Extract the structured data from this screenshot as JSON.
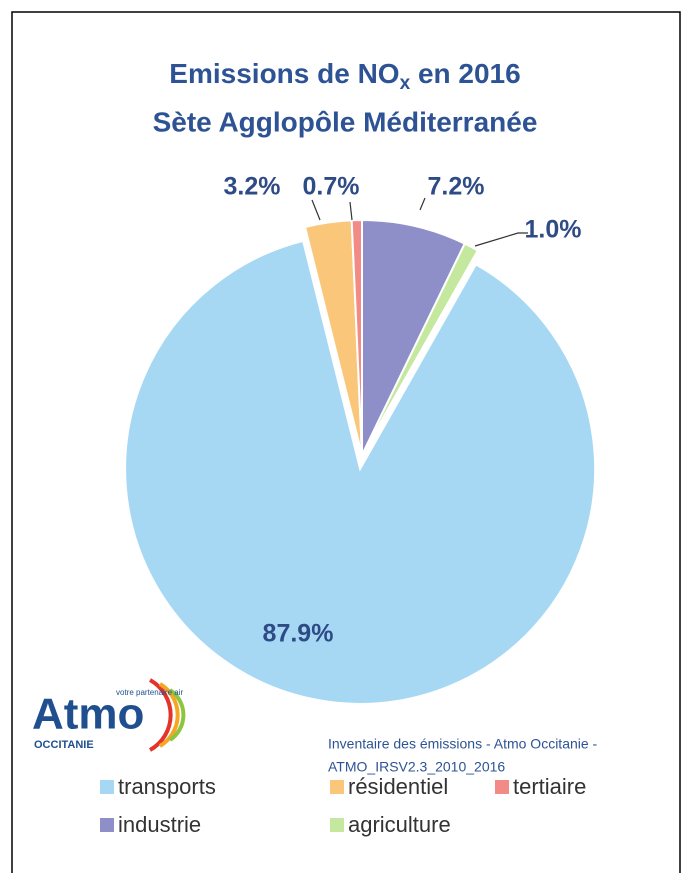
{
  "chart_data": {
    "type": "pie",
    "title": [
      "Emissions  de NO",
      "x",
      " en 2016"
    ],
    "subtitle": "Sète Agglopôle Méditerranée",
    "categories": [
      "industrie",
      "agriculture",
      "transports",
      "résidentiel",
      "tertiaire"
    ],
    "values": [
      7.2,
      1.0,
      87.9,
      3.2,
      0.7
    ],
    "value_labels": [
      "7.2%",
      "1.0%",
      "87.9%",
      "3.2%",
      "0.7%"
    ],
    "colors": [
      "#8e8ec8",
      "#c5e89f",
      "#a6d8f4",
      "#fac77a",
      "#f28b85"
    ],
    "legend": "bottom",
    "source": [
      "Inventaire des émissions - Atmo Occitanie -",
      "ATMO_IRSV2.3_2010_2016"
    ],
    "logo": {
      "name": "Atmo",
      "region": "OCCITANIE",
      "tagline": "votre partenaire air"
    }
  }
}
